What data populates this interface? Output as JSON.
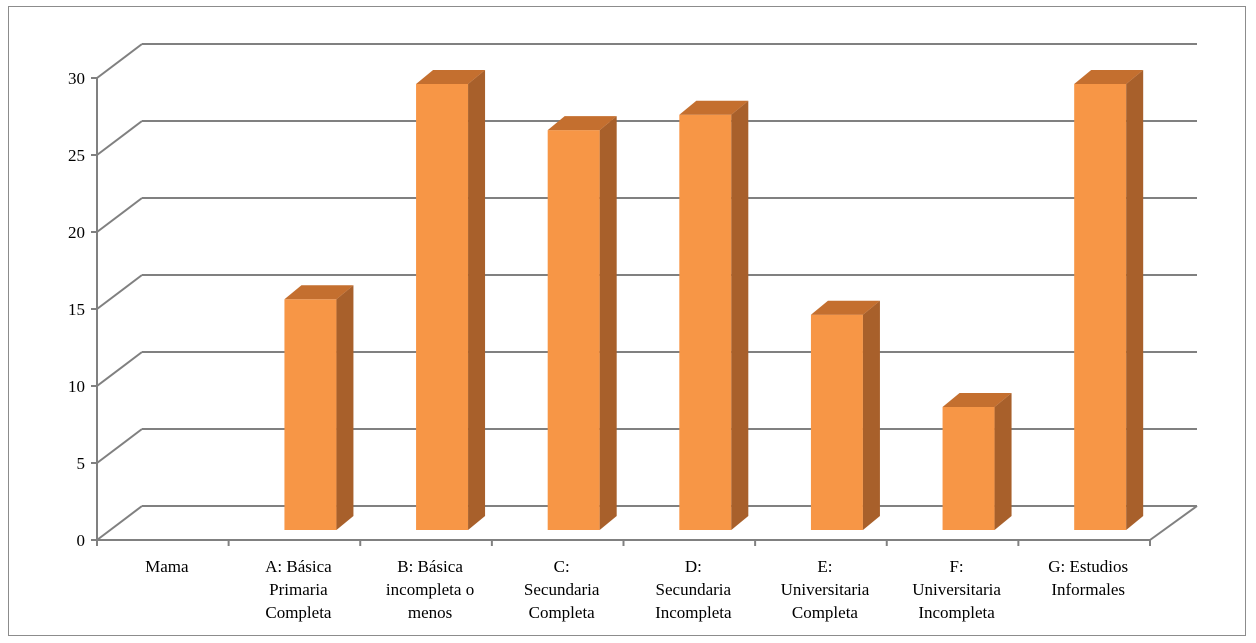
{
  "chart_data": {
    "type": "bar",
    "title": "",
    "xlabel": "",
    "ylabel": "",
    "ylim": [
      0,
      30
    ],
    "yticks": [
      "0",
      "5",
      "10",
      "15",
      "20",
      "25",
      "30"
    ],
    "grid": true,
    "three_d": true,
    "categories": [
      "Mama",
      "A: Básica\nPrimaria\nCompleta",
      "B:  Básica\nincompleta o\nmenos",
      "C:\nSecundaria\nCompleta",
      "D:\nSecundaria\nIncompleta",
      "E:\nUniversitaria\nCompleta",
      "F:\nUniversitaria\nIncompleta",
      "G: Estudios\nInformales"
    ],
    "values": [
      0,
      15,
      29,
      26,
      27,
      14,
      8,
      29
    ],
    "colors": {
      "front": "#F79646",
      "side": "#A8602B",
      "top": "#C46F2F",
      "grid": "#808080"
    }
  }
}
